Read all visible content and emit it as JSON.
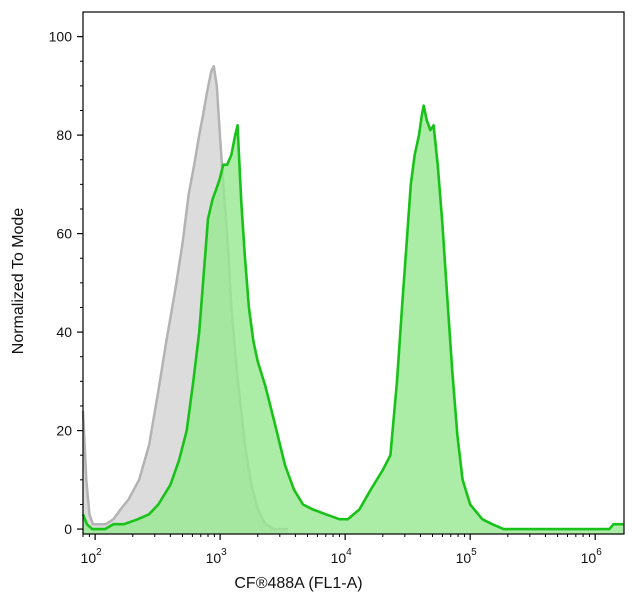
{
  "chart_data": {
    "type": "area",
    "title": "",
    "xlabel": "CF®488A (FL1-A)",
    "ylabel": "Normalized To Mode",
    "x_scale": "log",
    "xlim": [
      80,
      1700000
    ],
    "ylim": [
      -1,
      105
    ],
    "grid": false,
    "x_ticks": [
      {
        "base": "10",
        "exp": "2",
        "value": 100
      },
      {
        "base": "10",
        "exp": "3",
        "value": 1000
      },
      {
        "base": "10",
        "exp": "4",
        "value": 10000
      },
      {
        "base": "10",
        "exp": "5",
        "value": 100000
      },
      {
        "base": "10",
        "exp": "6",
        "value": 1000000
      }
    ],
    "y_ticks": [
      {
        "label": "0",
        "value": 0
      },
      {
        "label": "20",
        "value": 20
      },
      {
        "label": "40",
        "value": 40
      },
      {
        "label": "60",
        "value": 60
      },
      {
        "label": "80",
        "value": 80
      },
      {
        "label": "100",
        "value": 100
      }
    ],
    "series": [
      {
        "fill": "#dcdcdc",
        "stroke": "#b3b3b3",
        "points": [
          [
            80,
            24
          ],
          [
            85,
            10
          ],
          [
            90,
            3
          ],
          [
            96,
            1
          ],
          [
            104,
            1
          ],
          [
            122,
            1
          ],
          [
            140,
            2
          ],
          [
            160,
            4
          ],
          [
            185,
            6
          ],
          [
            225,
            10
          ],
          [
            270,
            17
          ],
          [
            320,
            28
          ],
          [
            370,
            38
          ],
          [
            440,
            49
          ],
          [
            500,
            58
          ],
          [
            560,
            68
          ],
          [
            620,
            74
          ],
          [
            680,
            80
          ],
          [
            730,
            84
          ],
          [
            790,
            89
          ],
          [
            850,
            93
          ],
          [
            890,
            94
          ],
          [
            940,
            90
          ],
          [
            990,
            81
          ],
          [
            1060,
            70
          ],
          [
            1140,
            60
          ],
          [
            1230,
            45
          ],
          [
            1340,
            34
          ],
          [
            1470,
            24
          ],
          [
            1600,
            16
          ],
          [
            1780,
            9
          ],
          [
            2000,
            4
          ],
          [
            2300,
            1
          ],
          [
            2700,
            0
          ],
          [
            3500,
            0
          ]
        ]
      },
      {
        "fill": "#99e892",
        "stroke": "#19c219",
        "points": [
          [
            80,
            3
          ],
          [
            86,
            1
          ],
          [
            95,
            0
          ],
          [
            120,
            0
          ],
          [
            140,
            1
          ],
          [
            170,
            1
          ],
          [
            220,
            2
          ],
          [
            270,
            3
          ],
          [
            320,
            5
          ],
          [
            400,
            9
          ],
          [
            470,
            14
          ],
          [
            540,
            20
          ],
          [
            610,
            30
          ],
          [
            680,
            40
          ],
          [
            740,
            52
          ],
          [
            800,
            63
          ],
          [
            870,
            67
          ],
          [
            930,
            69
          ],
          [
            990,
            71
          ],
          [
            1060,
            74
          ],
          [
            1140,
            74
          ],
          [
            1230,
            76
          ],
          [
            1320,
            80
          ],
          [
            1380,
            82
          ],
          [
            1420,
            75
          ],
          [
            1480,
            66
          ],
          [
            1580,
            55
          ],
          [
            1700,
            45
          ],
          [
            1850,
            38
          ],
          [
            2000,
            34
          ],
          [
            2300,
            29
          ],
          [
            2700,
            22
          ],
          [
            3300,
            13
          ],
          [
            3900,
            8
          ],
          [
            4600,
            5
          ],
          [
            5500,
            4
          ],
          [
            7000,
            3
          ],
          [
            9000,
            2
          ],
          [
            10500,
            2
          ],
          [
            13000,
            4
          ],
          [
            16000,
            8
          ],
          [
            20000,
            12
          ],
          [
            23000,
            15
          ],
          [
            26000,
            30
          ],
          [
            28500,
            45
          ],
          [
            31000,
            58
          ],
          [
            33500,
            70
          ],
          [
            36000,
            76
          ],
          [
            39000,
            80
          ],
          [
            41000,
            84
          ],
          [
            42500,
            86
          ],
          [
            45000,
            83
          ],
          [
            48000,
            81
          ],
          [
            51000,
            82
          ],
          [
            55000,
            74
          ],
          [
            60000,
            62
          ],
          [
            66000,
            46
          ],
          [
            72000,
            32
          ],
          [
            79000,
            19
          ],
          [
            87000,
            10
          ],
          [
            100000,
            5
          ],
          [
            125000,
            2
          ],
          [
            150000,
            1
          ],
          [
            185000,
            0
          ],
          [
            1300000,
            0
          ],
          [
            1400000,
            1
          ],
          [
            1700000,
            1
          ]
        ]
      }
    ]
  }
}
